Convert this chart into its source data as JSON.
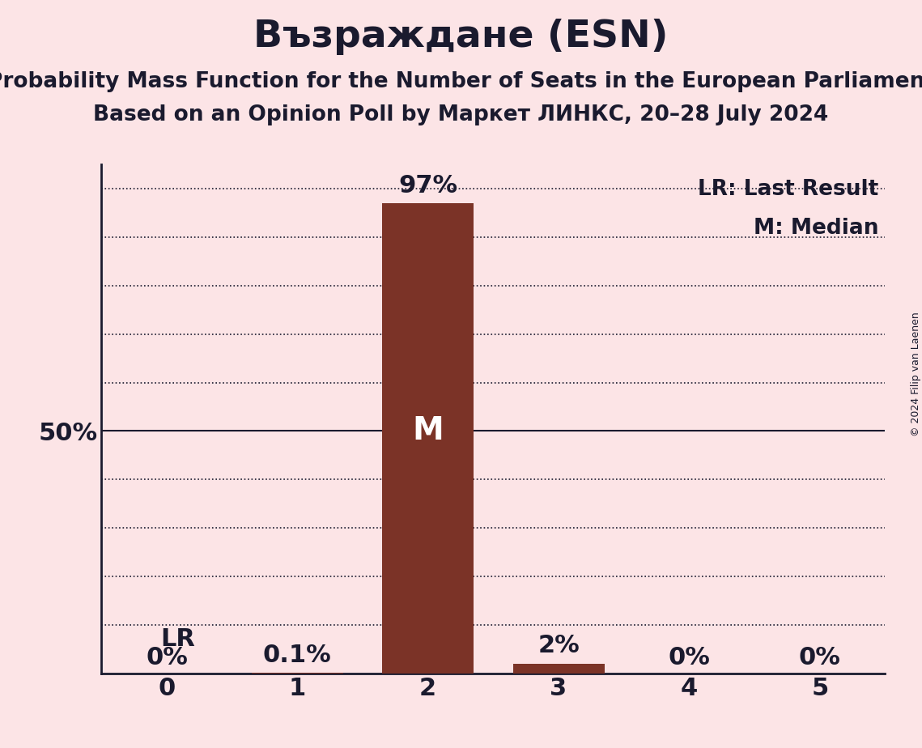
{
  "title": "Възраждане (ESN)",
  "subtitle1": "Probability Mass Function for the Number of Seats in the European Parliament",
  "subtitle2": "Based on an Opinion Poll by Маркет ЛИНКС, 20–28 July 2024",
  "copyright": "© 2024 Filip van Laenen",
  "categories": [
    0,
    1,
    2,
    3,
    4,
    5
  ],
  "values": [
    0.0,
    0.001,
    0.97,
    0.02,
    0.0,
    0.0
  ],
  "bar_labels": [
    "0%",
    "0.1%",
    "97%",
    "2%",
    "0%",
    "0%"
  ],
  "bar_color": "#7B3327",
  "background_color": "#fce4e6",
  "text_color": "#1a1a2e",
  "ylim": [
    0,
    1.05
  ],
  "grid_dotted": [
    0.1,
    0.2,
    0.3,
    0.4,
    0.6,
    0.7,
    0.8,
    0.9,
    1.0
  ],
  "grid_solid": [
    0.5
  ],
  "median_seat": 2,
  "lr_seat": 0,
  "legend_lr": "LR: Last Result",
  "legend_m": "M: Median",
  "title_fontsize": 34,
  "subtitle_fontsize": 19,
  "bar_label_fontsize": 22,
  "axis_fontsize": 22,
  "ytick_fontsize": 22,
  "legend_fontsize": 19,
  "lr_fontsize": 22,
  "m_fontsize": 28
}
